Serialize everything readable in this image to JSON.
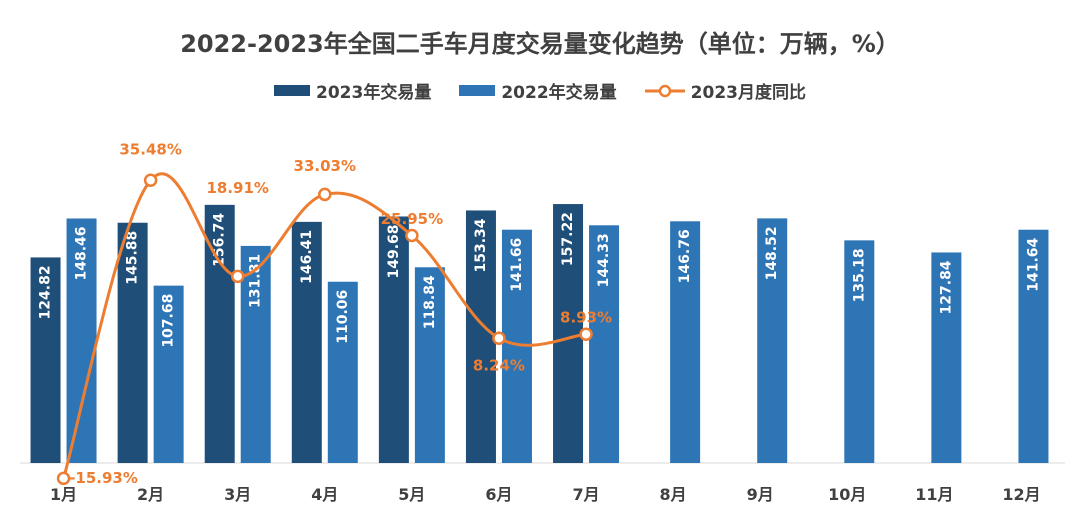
{
  "chart_data": {
    "type": "bar",
    "title": "2022-2023年全国二手车月度交易量变化趋势（单位：万辆，%）",
    "categories": [
      "1月",
      "2月",
      "3月",
      "4月",
      "5月",
      "6月",
      "7月",
      "8月",
      "9月",
      "10月",
      "11月",
      "12月"
    ],
    "series": [
      {
        "name": "2023年交易量",
        "type": "bar",
        "color": "#1F4E79",
        "values": [
          124.82,
          145.88,
          156.74,
          146.41,
          149.68,
          153.34,
          157.22,
          null,
          null,
          null,
          null,
          null
        ]
      },
      {
        "name": "2022年交易量",
        "type": "bar",
        "color": "#2E75B6",
        "values": [
          148.46,
          107.68,
          131.81,
          110.06,
          118.84,
          141.66,
          144.33,
          146.76,
          148.52,
          135.18,
          127.84,
          141.64
        ]
      },
      {
        "name": "2023月度同比",
        "type": "line",
        "color": "#ED7D31",
        "values": [
          -15.93,
          35.48,
          18.91,
          33.03,
          25.95,
          8.24,
          8.93,
          null,
          null,
          null,
          null,
          null
        ]
      }
    ],
    "bar_value_labels": {
      "2023": [
        "124.82",
        "145.88",
        "156.74",
        "146.41",
        "149.68",
        "153.34",
        "157.22",
        "",
        "",
        "",
        "",
        ""
      ],
      "2022": [
        "148.46",
        "107.68",
        "131.81",
        "110.06",
        "118.84",
        "141.66",
        "144.33",
        "146.76",
        "148.52",
        "135.18",
        "127.84",
        "141.64"
      ]
    },
    "line_value_labels": [
      "-15.93%",
      "35.48%",
      "18.91%",
      "33.03%",
      "25.95%",
      "8.24%",
      "8.93%",
      "",
      "",
      "",
      "",
      ""
    ],
    "legend": [
      "2023年交易量",
      "2022年交易量",
      "2023月度同比"
    ],
    "legend_position": "top"
  }
}
